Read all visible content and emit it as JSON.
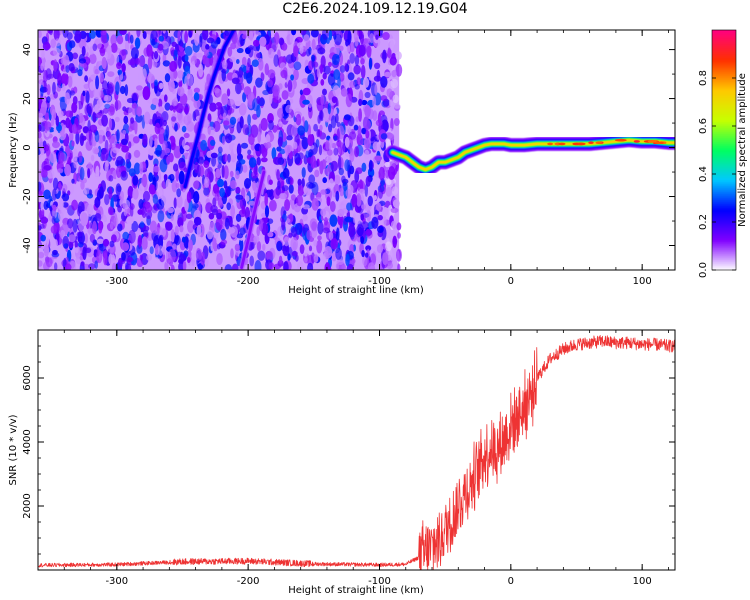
{
  "page": {
    "title": "C2E6.2024.109.12.19.G04"
  },
  "chart_data": [
    {
      "type": "heatmap",
      "xlabel": "Height of straight line (km)",
      "ylabel": "Frequency (Hz)",
      "xlim": [
        -360,
        125
      ],
      "ylim": [
        -50,
        48
      ],
      "xticks": [
        -300,
        -200,
        -100,
        0,
        100
      ],
      "yticks": [
        -40,
        -20,
        0,
        20,
        40
      ],
      "colorbar": {
        "label": "Normalized spectral amplitude",
        "range": [
          0.0,
          1.0
        ],
        "ticks": [
          0.0,
          0.2,
          0.4,
          0.6,
          0.8
        ],
        "colors": [
          "#ffffff",
          "#8000ff",
          "#0000ff",
          "#00c8ff",
          "#00ff60",
          "#c8ff00",
          "#ffc800",
          "#ff3000",
          "#ff0080"
        ]
      },
      "noise_region": {
        "x_range": [
          -360,
          -85
        ],
        "y_range": [
          -50,
          48
        ],
        "typical_amplitude": [
          0.05,
          0.3
        ]
      },
      "ridges": [
        {
          "name": "",
          "x": [
            -248,
            -243,
            -238,
            -234,
            -230,
            -226,
            -222,
            -218,
            -214,
            -210
          ],
          "y": [
            -16,
            -5,
            5,
            14,
            22,
            29,
            35,
            41,
            45,
            49
          ],
          "amplitude": 0.25
        },
        {
          "name": "",
          "x": [
            -205,
            -200,
            -196,
            -192,
            -188
          ],
          "y": [
            -49,
            -38,
            -28,
            -19,
            -10
          ],
          "amplitude": 0.12
        },
        {
          "name": "",
          "x": [
            -90,
            -85,
            -80,
            -75,
            -70,
            -65,
            -60,
            -55,
            -50,
            -45,
            -40,
            -35,
            -30,
            -25,
            -20,
            -15,
            -10,
            -5,
            0,
            10,
            20,
            30,
            40,
            50,
            60,
            70,
            80,
            90,
            100,
            110,
            120,
            125
          ],
          "y": [
            -2,
            -3,
            -4,
            -6,
            -8,
            -9,
            -8,
            -6,
            -6,
            -5,
            -4,
            -2,
            -1,
            0,
            1,
            1.5,
            1.5,
            1.5,
            1,
            1,
            1.5,
            1.5,
            1.5,
            1.5,
            1.5,
            2,
            2.5,
            3,
            2.5,
            2.5,
            2,
            2
          ],
          "amplitude": 0.75
        }
      ]
    },
    {
      "type": "line",
      "xlabel": "Height of straight line (km)",
      "ylabel": "SNR (10 * v/v)",
      "xlim": [
        -360,
        125
      ],
      "ylim": [
        0,
        7500
      ],
      "xticks": [
        -300,
        -200,
        -100,
        0,
        100
      ],
      "yticks": [
        2000,
        4000,
        6000
      ],
      "color": "#ee3333",
      "series": [
        {
          "name": "",
          "x": [
            -360,
            -300,
            -250,
            -200,
            -150,
            -100,
            -80,
            -65,
            -55,
            -45,
            -40,
            -35,
            -30,
            -25,
            -20,
            -15,
            -10,
            -5,
            0,
            5,
            10,
            15,
            20,
            25,
            30,
            40,
            50,
            60,
            70,
            80,
            90,
            100,
            110,
            120,
            125
          ],
          "y": [
            150,
            170,
            260,
            280,
            190,
            160,
            180,
            500,
            900,
            1600,
            2000,
            2400,
            2700,
            3200,
            3600,
            3800,
            3800,
            4100,
            4500,
            4800,
            5100,
            5400,
            6000,
            6300,
            6600,
            6900,
            7050,
            7100,
            7150,
            7100,
            7100,
            7050,
            7050,
            7000,
            7000
          ]
        }
      ]
    }
  ]
}
